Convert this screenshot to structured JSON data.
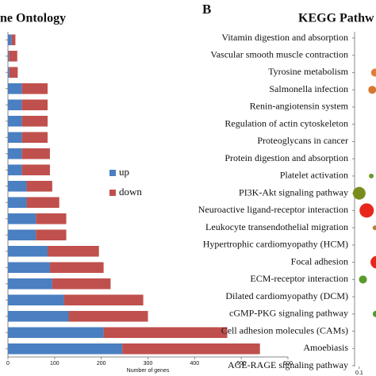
{
  "chart_data": [
    {
      "type": "bar",
      "orientation": "horizontal",
      "stacked": true,
      "title": "ne Ontology",
      "categories": [
        null,
        null,
        null,
        null,
        null,
        null,
        null,
        null,
        null,
        null,
        null,
        null,
        null,
        null,
        null,
        null,
        null,
        null,
        null,
        null
      ],
      "series": [
        {
          "name": "up",
          "color": "#4a7fc1",
          "values": [
            8,
            2,
            3,
            30,
            30,
            30,
            30,
            30,
            30,
            40,
            40,
            60,
            60,
            85,
            90,
            95,
            120,
            130,
            205,
            245
          ]
        },
        {
          "name": "down",
          "color": "#c0504d",
          "values": [
            8,
            18,
            18,
            55,
            55,
            55,
            55,
            60,
            60,
            55,
            70,
            65,
            65,
            110,
            115,
            125,
            170,
            170,
            265,
            295
          ]
        }
      ],
      "xlabel": "Number of genes",
      "xlim": [
        0,
        600
      ],
      "xticks": [
        0,
        100,
        200,
        300,
        400,
        500,
        600
      ],
      "legend": "right"
    },
    {
      "type": "scatter",
      "label": "B",
      "title": "KEGG Pathw",
      "categories": [
        "Vitamin digestion and absorption",
        "Vascular smooth muscle contraction",
        "Tyrosine metabolism",
        "Salmonella infection",
        "Renin-angiotensin system",
        "Regulation of actin cytoskeleton",
        "Proteoglycans in cancer",
        "Protein digestion and absorption",
        "Platelet activation",
        "PI3K-Akt signaling pathway",
        "Neuroactive ligand-receptor interaction",
        "Leukocyte transendothelial migration",
        "Hypertrophic cardiomyopathy (HCM)",
        "Focal adhesion",
        "ECM-receptor interaction",
        "Dilated cardiomyopathy (DCM)",
        "cGMP-PKG signaling pathway",
        "Cell adhesion molecules (CAMs)",
        "Amoebiasis",
        "AGE-RAGE signaling pathway"
      ],
      "x": [
        null,
        null,
        0.117,
        0.114,
        null,
        null,
        null,
        null,
        0.113,
        0.1,
        0.108,
        0.117,
        null,
        0.119,
        0.104,
        null,
        0.118,
        null,
        null,
        null
      ],
      "sizes": [
        null,
        null,
        5,
        5,
        null,
        null,
        null,
        null,
        3,
        8,
        9,
        3,
        null,
        8,
        5,
        null,
        4,
        null,
        null,
        null
      ],
      "colors": [
        null,
        null,
        "#e07b39",
        "#d9762f",
        null,
        null,
        null,
        null,
        "#6b9a2e",
        "#7a8c1e",
        "#e8261c",
        "#b5803a",
        null,
        "#e8261c",
        "#5a9a2a",
        null,
        "#4f9a2c",
        null,
        null,
        null
      ],
      "xlim": [
        0.095,
        0.2
      ],
      "xticks": [
        0.1
      ]
    }
  ]
}
